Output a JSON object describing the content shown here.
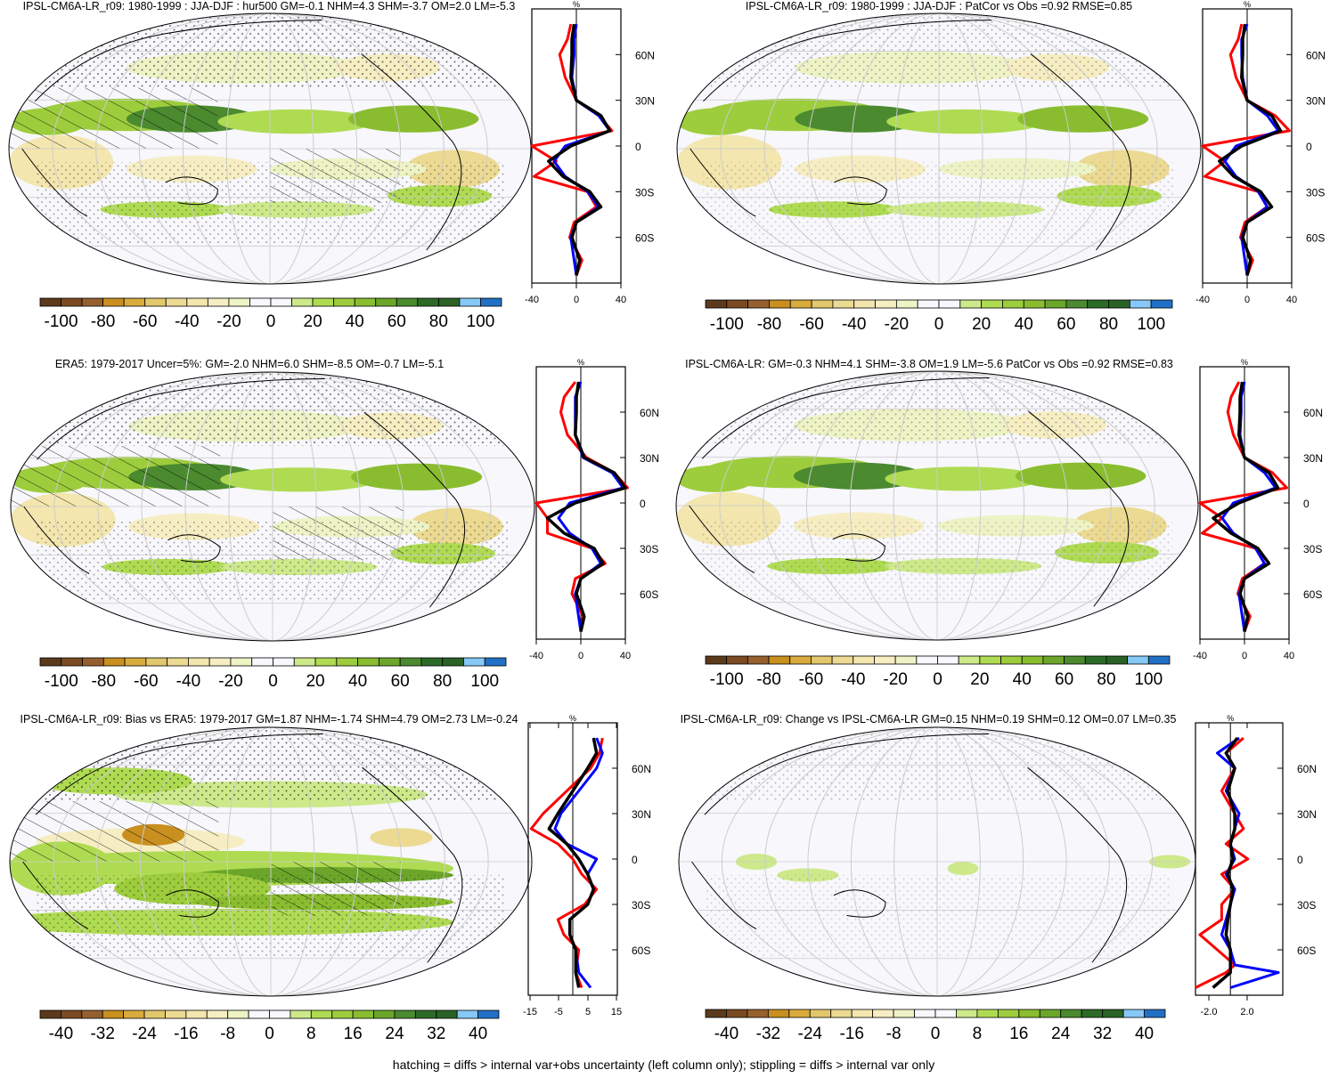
{
  "footer": "hatching = diffs > internal var+obs uncertainty (left column only); stippling = diffs > internal var only",
  "colors": {
    "model_line": "#ff0000",
    "obs_line": "#0000ff",
    "mean_line": "#000000",
    "colorbar": [
      "#5b3a1c",
      "#7b4a22",
      "#96602e",
      "#c98f1f",
      "#d8ab3c",
      "#e2c76c",
      "#ecda93",
      "#f3e6ae",
      "#f6eec2",
      "#eef3c6",
      "#f7f7fc",
      "#f7f7fc",
      "#cde98a",
      "#afdb52",
      "#9dcd3d",
      "#89bd2f",
      "#6ba62a",
      "#4b8a2f",
      "#2c6b27",
      "#2a6226",
      "#86c8f6",
      "#2170c6"
    ]
  },
  "chart_data": [
    {
      "type": "line",
      "title": "IPSL-CM6A-LR_r09: 1980-1999 : JJA-DJF : hur500 GM=-0.1 NHM=4.3 SHM=-3.7 OM=2.0 LM=-5.3",
      "map": "contour-map",
      "colorbar_ticks": [
        "-100",
        "-80",
        "-60",
        "-40",
        "-20",
        "0",
        "20",
        "40",
        "60",
        "80",
        "100"
      ],
      "profile": {
        "xlabel": "%",
        "xlim": [
          -40,
          40
        ],
        "xticks": [
          "-40",
          "0",
          "40"
        ],
        "ylim": [
          -90,
          90
        ],
        "yticks": [
          "60N",
          "30N",
          "0",
          "30S",
          "60S"
        ],
        "lat": [
          80,
          70,
          60,
          45,
          30,
          20,
          10,
          0,
          -10,
          -20,
          -30,
          -40,
          -50,
          -60,
          -75,
          -85
        ],
        "series": [
          {
            "name": "model",
            "values": [
              -5,
              -8,
              -15,
              -10,
              0,
              20,
              32,
              -40,
              -18,
              -38,
              10,
              18,
              -2,
              -6,
              5,
              0
            ]
          },
          {
            "name": "obs",
            "values": [
              0,
              -2,
              -2,
              -4,
              0,
              20,
              30,
              -10,
              -20,
              -10,
              10,
              20,
              0,
              -5,
              -2,
              0
            ]
          },
          {
            "name": "mean",
            "values": [
              -2,
              -4,
              -4,
              -5,
              0,
              22,
              30,
              -5,
              -25,
              -12,
              12,
              22,
              0,
              -4,
              3,
              0
            ]
          }
        ]
      }
    },
    {
      "type": "line",
      "title": "IPSL-CM6A-LR_r09: 1980-1999 : JJA-DJF : PatCor vs Obs =0.92 RMSE=0.85",
      "map": "contour-map",
      "colorbar_ticks": [
        "-100",
        "-80",
        "-60",
        "-40",
        "-20",
        "0",
        "20",
        "40",
        "60",
        "80",
        "100"
      ],
      "profile": {
        "xlabel": "%",
        "xlim": [
          -40,
          40
        ],
        "xticks": [
          "-40",
          "0",
          "40"
        ],
        "ylim": [
          -90,
          90
        ],
        "yticks": [
          "60N",
          "30N",
          "0",
          "30S",
          "60S"
        ],
        "lat": [
          80,
          70,
          60,
          45,
          30,
          20,
          10,
          0,
          -10,
          -20,
          -30,
          -40,
          -50,
          -60,
          -75,
          -85
        ],
        "series": [
          {
            "name": "model",
            "values": [
              -5,
              -8,
              -15,
              -10,
              0,
              25,
              38,
              -40,
              -20,
              -38,
              10,
              18,
              -2,
              -6,
              5,
              0
            ]
          },
          {
            "name": "obs",
            "values": [
              0,
              -5,
              -5,
              -4,
              0,
              18,
              28,
              -10,
              -20,
              -10,
              10,
              18,
              0,
              -5,
              -2,
              0
            ]
          },
          {
            "name": "mean",
            "values": [
              -2,
              -4,
              -4,
              -5,
              0,
              22,
              30,
              -5,
              -25,
              -12,
              12,
              22,
              0,
              -4,
              3,
              0
            ]
          }
        ]
      }
    },
    {
      "type": "line",
      "title": "ERA5: 1979-2017 Uncer=5%: GM=-2.0 NHM=6.0 SHM=-8.5 OM=-0.7 LM=-5.1",
      "map": "contour-map",
      "colorbar_ticks": [
        "-100",
        "-80",
        "-60",
        "-40",
        "-20",
        "0",
        "20",
        "40",
        "60",
        "80",
        "100"
      ],
      "profile": {
        "xlabel": "%",
        "xlim": [
          -40,
          40
        ],
        "xticks": [
          "-40",
          "0",
          "40"
        ],
        "ylim": [
          -90,
          90
        ],
        "yticks": [
          "60N",
          "30N",
          "0",
          "30S",
          "60S"
        ],
        "lat": [
          80,
          70,
          60,
          45,
          30,
          20,
          10,
          0,
          -10,
          -20,
          -30,
          -40,
          -50,
          -60,
          -75,
          -85
        ],
        "series": [
          {
            "name": "model",
            "values": [
              -5,
              -15,
              -18,
              -12,
              5,
              30,
              42,
              -40,
              -30,
              -30,
              10,
              22,
              -5,
              -8,
              2,
              0
            ]
          },
          {
            "name": "obs",
            "values": [
              0,
              -5,
              -5,
              -5,
              2,
              28,
              38,
              -10,
              -20,
              -10,
              10,
              18,
              0,
              -5,
              -2,
              0
            ]
          },
          {
            "name": "mean",
            "values": [
              -2,
              -4,
              -4,
              -5,
              3,
              30,
              40,
              -5,
              -30,
              -15,
              12,
              20,
              0,
              -4,
              3,
              0
            ]
          }
        ]
      }
    },
    {
      "type": "line",
      "title": "IPSL-CM6A-LR: GM=-0.3 NHM=4.1 SHM=-3.8 OM=1.9 LM=-5.6 PatCor vs Obs =0.92 RMSE=0.83",
      "map": "contour-map",
      "colorbar_ticks": [
        "-100",
        "-80",
        "-60",
        "-40",
        "-20",
        "0",
        "20",
        "40",
        "60",
        "80",
        "100"
      ],
      "profile": {
        "xlabel": "%",
        "xlim": [
          -40,
          40
        ],
        "xticks": [
          "-40",
          "0",
          "40"
        ],
        "ylim": [
          -90,
          90
        ],
        "yticks": [
          "60N",
          "30N",
          "0",
          "30S",
          "60S"
        ],
        "lat": [
          80,
          70,
          60,
          45,
          30,
          20,
          10,
          0,
          -10,
          -20,
          -30,
          -40,
          -50,
          -60,
          -75,
          -85
        ],
        "series": [
          {
            "name": "model",
            "values": [
              -5,
              -12,
              -15,
              -10,
              0,
              25,
              38,
              -40,
              -20,
              -38,
              10,
              18,
              -2,
              -6,
              5,
              0
            ]
          },
          {
            "name": "obs",
            "values": [
              0,
              -3,
              -3,
              -4,
              0,
              18,
              28,
              -10,
              -20,
              -10,
              10,
              18,
              0,
              -5,
              -2,
              0
            ]
          },
          {
            "name": "mean",
            "values": [
              -2,
              -4,
              -4,
              -5,
              0,
              22,
              30,
              -5,
              -28,
              -12,
              12,
              22,
              0,
              -4,
              3,
              0
            ]
          }
        ]
      }
    },
    {
      "type": "line",
      "title": "IPSL-CM6A-LR_r09: Bias vs ERA5: 1979-2017 GM=1.87 NHM=-1.74 SHM=4.79 OM=2.73 LM=-0.24",
      "map": "contour-map",
      "colorbar_ticks": [
        "-40",
        "-32",
        "-24",
        "-16",
        "-8",
        "0",
        "8",
        "16",
        "24",
        "32",
        "40"
      ],
      "profile": {
        "xlabel": "%",
        "xlim": [
          -15,
          15
        ],
        "xticks": [
          "-15",
          "-5",
          "5",
          "15"
        ],
        "ylim": [
          -90,
          90
        ],
        "yticks": [
          "60N",
          "30N",
          "0",
          "30S",
          "60S"
        ],
        "lat": [
          80,
          70,
          60,
          45,
          30,
          20,
          10,
          0,
          -10,
          -20,
          -30,
          -40,
          -50,
          -60,
          -75,
          -85
        ],
        "series": [
          {
            "name": "model",
            "values": [
              10,
              9,
              6,
              -2,
              -10,
              -14,
              -5,
              0,
              3,
              8,
              4,
              -5,
              -3,
              2,
              1,
              3
            ]
          },
          {
            "name": "obs",
            "values": [
              8,
              10,
              8,
              2,
              -4,
              -6,
              -2,
              8,
              5,
              7,
              5,
              -1,
              -1,
              1,
              2,
              6
            ]
          },
          {
            "name": "mean",
            "values": [
              7,
              8,
              5,
              0,
              -5,
              -8,
              -2,
              2,
              5,
              7,
              5,
              -1,
              -1,
              1,
              1,
              2
            ]
          }
        ]
      }
    },
    {
      "type": "line",
      "title": "IPSL-CM6A-LR_r09: Change vs IPSL-CM6A-LR GM=0.15 NHM=0.19 SHM=0.12 OM=0.07 LM=0.35",
      "map": "contour-map",
      "colorbar_ticks": [
        "-40",
        "-32",
        "-24",
        "-16",
        "-8",
        "0",
        "8",
        "16",
        "24",
        "32",
        "40"
      ],
      "profile": {
        "xlabel": "%",
        "xlim": [
          -4,
          6
        ],
        "xticks": [
          "-2.0",
          "2.0"
        ],
        "ylim": [
          -90,
          90
        ],
        "yticks": [
          "60N",
          "30N",
          "0",
          "30S",
          "60S"
        ],
        "lat": [
          80,
          70,
          60,
          45,
          30,
          20,
          10,
          0,
          -10,
          -20,
          -30,
          -40,
          -50,
          -60,
          -70,
          -75,
          -85
        ],
        "series": [
          {
            "name": "model",
            "values": [
              1.5,
              -0.5,
              0.5,
              -1,
              0.5,
              1.5,
              -0.5,
              2,
              -1,
              0.5,
              -1,
              -1,
              -3.5,
              -1.5,
              0.5,
              -0.5,
              -4
            ]
          },
          {
            "name": "obs",
            "values": [
              1,
              -1.5,
              0.5,
              -0.5,
              1,
              0.5,
              0,
              0.5,
              -0.5,
              0.5,
              0,
              -0.5,
              -1,
              0,
              0.5,
              5.5,
              0
            ]
          },
          {
            "name": "mean",
            "values": [
              0.8,
              -0.5,
              0.5,
              -0.3,
              0.5,
              0.5,
              0,
              0.3,
              -0.3,
              0.3,
              0,
              -0.3,
              -0.5,
              0,
              0,
              0,
              -2
            ]
          }
        ]
      }
    }
  ]
}
